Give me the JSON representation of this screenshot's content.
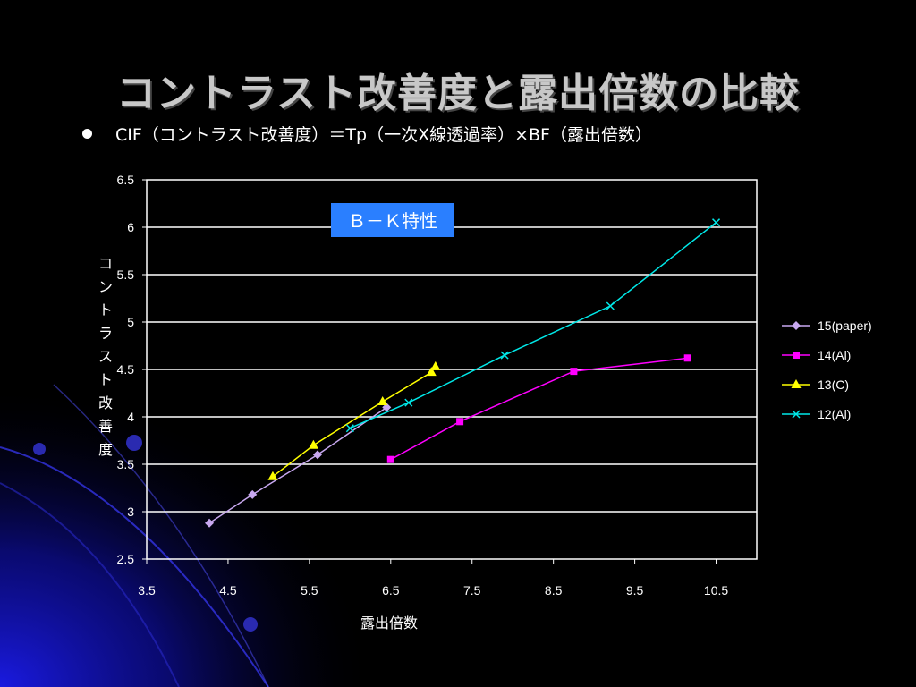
{
  "slide": {
    "title": "コントラスト改善度と露出倍数の比較",
    "bullet_text": "CIF（コントラスト改善度）＝Tp（一次X線透過率）×BF（露出倍数）"
  },
  "colors": {
    "background": "#000000",
    "plot_border": "#ffffff",
    "grid": "#ffffff",
    "annotation_bg": "#2a7fff"
  },
  "chart_data": {
    "type": "line",
    "title": "",
    "xlabel": "露出倍数",
    "ylabel": "コントラスト改善度",
    "xlim": [
      3.5,
      11
    ],
    "ylim": [
      2.5,
      6.5
    ],
    "xticks": [
      "3.5",
      "4.5",
      "5.5",
      "6.5",
      "7.5",
      "8.5",
      "9.5",
      "10.5"
    ],
    "yticks": [
      "2.5",
      "3",
      "3.5",
      "4",
      "4.5",
      "5",
      "5.5",
      "6",
      "6.5"
    ],
    "grid": "horizontal",
    "legend_position": "right",
    "annotation": "Ｂ－Ｋ特性",
    "series": [
      {
        "name": "15(paper)",
        "color": "#c8a8f0",
        "marker": "diamond",
        "points": [
          [
            4.27,
            2.88
          ],
          [
            4.8,
            3.18
          ],
          [
            5.6,
            3.6
          ],
          [
            6.45,
            4.1
          ]
        ]
      },
      {
        "name": "14(Al)",
        "color": "#ff00ff",
        "marker": "square",
        "points": [
          [
            6.5,
            3.55
          ],
          [
            7.35,
            3.95
          ],
          [
            8.75,
            4.48
          ],
          [
            10.15,
            4.62
          ]
        ]
      },
      {
        "name": "13(C)",
        "color": "#ffff00",
        "marker": "triangle",
        "points": [
          [
            5.05,
            3.37
          ],
          [
            5.55,
            3.7
          ],
          [
            6.4,
            4.16
          ],
          [
            7.0,
            4.47
          ],
          [
            7.05,
            4.53
          ]
        ]
      },
      {
        "name": "12(Al)",
        "color": "#00e8e8",
        "marker": "x",
        "points": [
          [
            6.0,
            3.88
          ],
          [
            6.72,
            4.15
          ],
          [
            7.9,
            4.65
          ],
          [
            9.2,
            5.17
          ],
          [
            10.5,
            6.05
          ]
        ]
      }
    ]
  }
}
